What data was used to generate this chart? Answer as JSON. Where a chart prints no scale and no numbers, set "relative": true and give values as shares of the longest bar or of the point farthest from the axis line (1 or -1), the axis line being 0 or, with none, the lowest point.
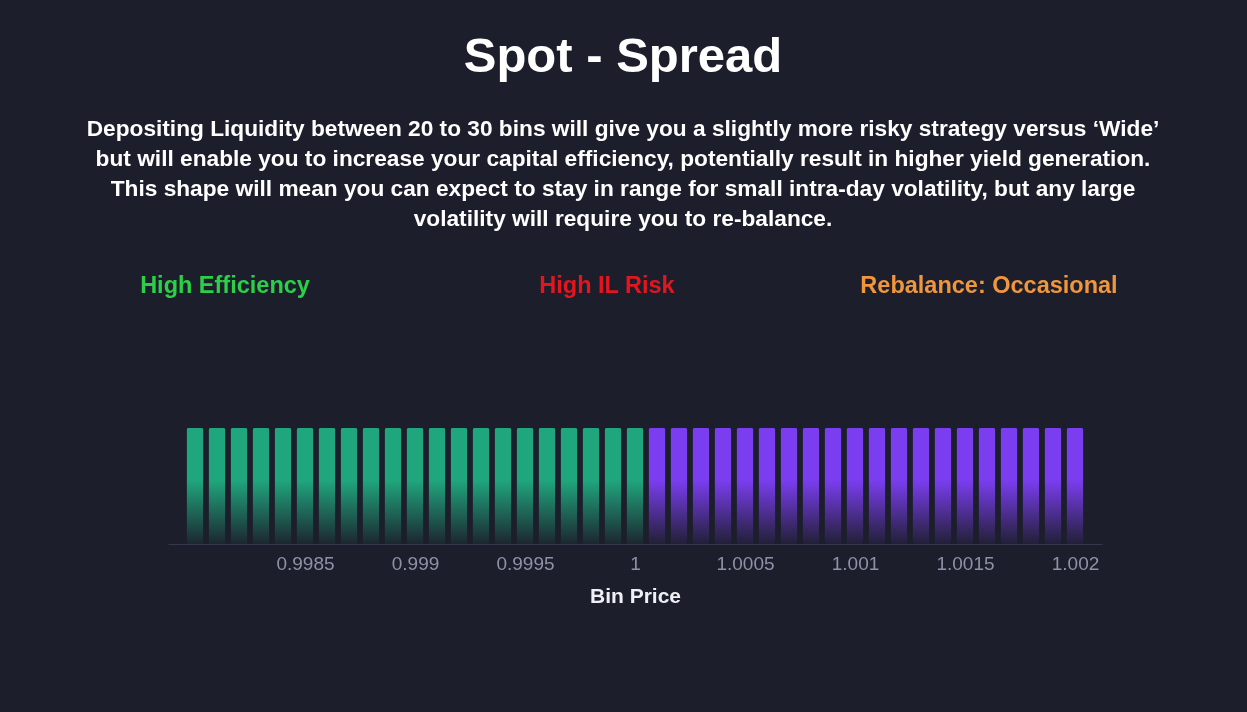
{
  "chart_data": {
    "type": "bar",
    "title": "Spot - Spread",
    "subtitle": "Depositing Liquidity between 20 to 30 bins will give you a slightly more risky strategy versus ‘Wide’\nbut will enable you to increase your capital efficiency, potentially result in higher yield generation.\nThis shape will mean you can expect to stay in range for small intra-day volatility, but any large\nvolatility will require you to re-balance.",
    "xlabel": "Bin Price",
    "annotations": [
      "High Efficiency",
      "High IL Risk",
      "Rebalance: Occasional"
    ],
    "relative": true,
    "xlim": [
      0.9979,
      1.0021
    ],
    "xticks": [
      0.9985,
      0.999,
      0.9995,
      1,
      1.0005,
      1.001,
      1.0015,
      1.002
    ],
    "series": [
      {
        "color": "#20a67d",
        "x": [
          0.998,
          0.9981,
          0.9982,
          0.9983,
          0.9984,
          0.9985,
          0.9986,
          0.9987,
          0.9988,
          0.9989,
          0.999,
          0.9991,
          0.9992,
          0.9993,
          0.9994,
          0.9995,
          0.9996,
          0.9997,
          0.9998,
          0.9999,
          1
        ],
        "values": [
          1,
          1,
          1,
          1,
          1,
          1,
          1,
          1,
          1,
          1,
          1,
          1,
          1,
          1,
          1,
          1,
          1,
          1,
          1,
          1,
          1
        ]
      },
      {
        "color": "#7b3df0",
        "x": [
          1.0001,
          1.0002,
          1.0003,
          1.0004,
          1.0005,
          1.0006,
          1.0007,
          1.0008,
          1.0009,
          1.001,
          1.0011,
          1.0012,
          1.0013,
          1.0014,
          1.0015,
          1.0016,
          1.0017,
          1.0018,
          1.0019,
          1.002
        ],
        "values": [
          1,
          1,
          1,
          1,
          1,
          1,
          1,
          1,
          1,
          1,
          1,
          1,
          1,
          1,
          1,
          1,
          1,
          1,
          1,
          1
        ]
      }
    ]
  }
}
